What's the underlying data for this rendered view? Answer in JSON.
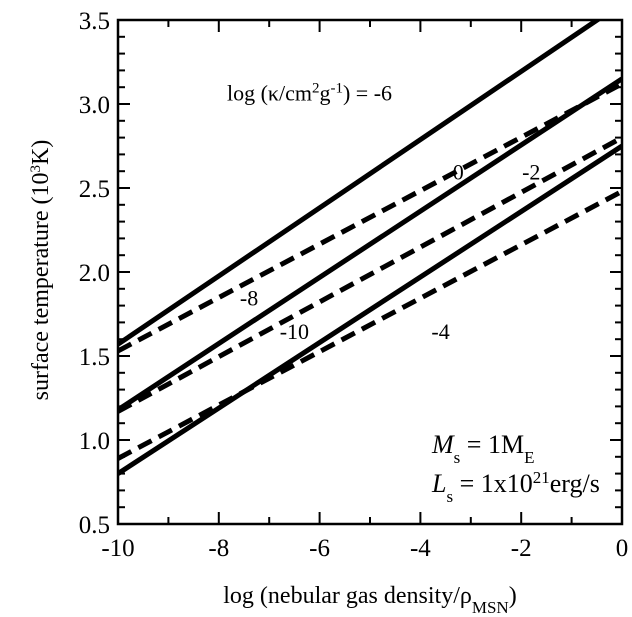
{
  "chart_data": {
    "type": "line",
    "xlabel": {
      "main": "log (nebular gas density/ρ",
      "sub": "MSN",
      "close": ")"
    },
    "ylabel": {
      "main": "surface temperature (10",
      "sup": "3",
      "close": "K)"
    },
    "xlim": [
      -10,
      0
    ],
    "ylim": [
      0.5,
      3.5
    ],
    "xticks": [
      -10,
      -8,
      -6,
      -4,
      -2,
      0
    ],
    "xtick_labels": [
      "-10",
      "-8",
      "-6",
      "-4",
      "-2",
      "0"
    ],
    "yticks": [
      0.5,
      1.0,
      1.5,
      2.0,
      2.5,
      3.0,
      3.5
    ],
    "ytick_labels": [
      "0.5",
      "1.0",
      "1.5",
      "2.0",
      "2.5",
      "3.0",
      "3.5"
    ],
    "grid": false,
    "series": [
      {
        "label": "-6",
        "style": "solid",
        "x": [
          -10,
          0
        ],
        "y": [
          1.57,
          3.6
        ]
      },
      {
        "label": "-8",
        "style": "solid",
        "x": [
          -10,
          0
        ],
        "y": [
          1.18,
          3.15
        ]
      },
      {
        "label": "-4",
        "style": "solid",
        "x": [
          -10,
          0
        ],
        "y": [
          0.8,
          2.75
        ]
      },
      {
        "label": "0",
        "style": "dashed",
        "x": [
          -10,
          0
        ],
        "y": [
          1.53,
          3.12
        ]
      },
      {
        "label": "-2",
        "style": "dashed",
        "x": [
          -10,
          0
        ],
        "y": [
          1.17,
          2.8
        ]
      },
      {
        "label": "-10",
        "style": "dashed",
        "x": [
          -10,
          0
        ],
        "y": [
          0.89,
          2.48
        ]
      }
    ],
    "annotations": [
      {
        "text": "log (κ/cm",
        "sup": "2",
        "text2": "g",
        "sup2": "-1",
        "text3": ") = -6",
        "x": -6.2,
        "y": 3.02
      },
      {
        "text": "0",
        "x": -3.25,
        "y": 2.55
      },
      {
        "text": "-2",
        "x": -1.8,
        "y": 2.55
      },
      {
        "text": "-8",
        "x": -7.4,
        "y": 1.8
      },
      {
        "text": "-10",
        "x": -6.5,
        "y": 1.6
      },
      {
        "text": "-4",
        "x": -3.6,
        "y": 1.6
      }
    ],
    "params": {
      "mass": {
        "var": "M",
        "sub": "s",
        "rest": " = 1M",
        "unit_sub": "E"
      },
      "lum": {
        "var": "L",
        "sub": "s",
        "rest": " = 1x10",
        "sup": "21",
        "unit": "erg/s"
      }
    }
  }
}
